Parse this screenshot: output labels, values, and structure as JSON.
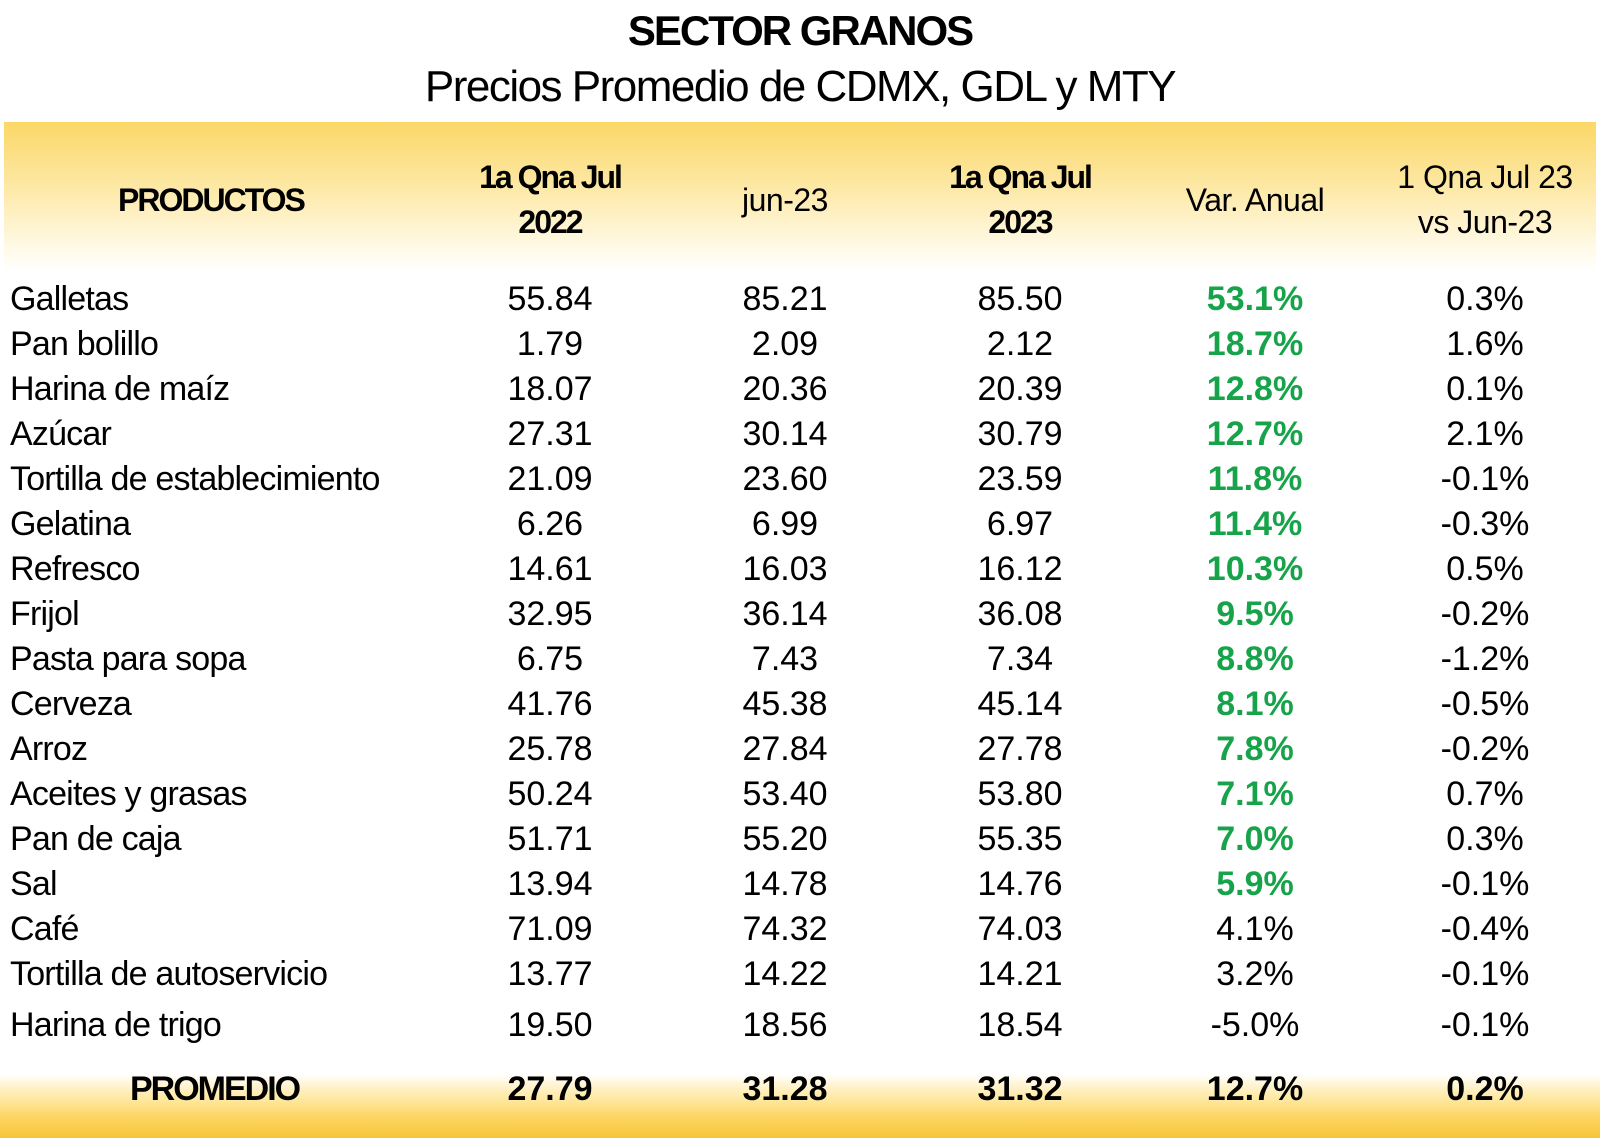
{
  "title": "SECTOR GRANOS",
  "subtitle": "Precios Promedio de CDMX, GDL y MTY",
  "columns": [
    "PRODUCTOS",
    "1a Qna Jul\n2022",
    "jun-23",
    "1a Qna Jul\n2023",
    "Var. Anual",
    "1 Qna Jul 23\nvs Jun-23"
  ],
  "highlight_color": "#16a34a",
  "rows": [
    {
      "producto": "Galletas",
      "jul22": "55.84",
      "jun23": "85.21",
      "jul23": "85.50",
      "var_anual": "53.1%",
      "var_mensual": "0.3%",
      "highlight": true
    },
    {
      "producto": "Pan bolillo",
      "jul22": "1.79",
      "jun23": "2.09",
      "jul23": "2.12",
      "var_anual": "18.7%",
      "var_mensual": "1.6%",
      "highlight": true
    },
    {
      "producto": "Harina de maíz",
      "jul22": "18.07",
      "jun23": "20.36",
      "jul23": "20.39",
      "var_anual": "12.8%",
      "var_mensual": "0.1%",
      "highlight": true
    },
    {
      "producto": "Azúcar",
      "jul22": "27.31",
      "jun23": "30.14",
      "jul23": "30.79",
      "var_anual": "12.7%",
      "var_mensual": "2.1%",
      "highlight": true
    },
    {
      "producto": "Tortilla de establecimiento",
      "jul22": "21.09",
      "jun23": "23.60",
      "jul23": "23.59",
      "var_anual": "11.8%",
      "var_mensual": "-0.1%",
      "highlight": true
    },
    {
      "producto": "Gelatina",
      "jul22": "6.26",
      "jun23": "6.99",
      "jul23": "6.97",
      "var_anual": "11.4%",
      "var_mensual": "-0.3%",
      "highlight": true
    },
    {
      "producto": "Refresco",
      "jul22": "14.61",
      "jun23": "16.03",
      "jul23": "16.12",
      "var_anual": "10.3%",
      "var_mensual": "0.5%",
      "highlight": true
    },
    {
      "producto": "Frijol",
      "jul22": "32.95",
      "jun23": "36.14",
      "jul23": "36.08",
      "var_anual": "9.5%",
      "var_mensual": "-0.2%",
      "highlight": true
    },
    {
      "producto": "Pasta para sopa",
      "jul22": "6.75",
      "jun23": "7.43",
      "jul23": "7.34",
      "var_anual": "8.8%",
      "var_mensual": "-1.2%",
      "highlight": true
    },
    {
      "producto": "Cerveza",
      "jul22": "41.76",
      "jun23": "45.38",
      "jul23": "45.14",
      "var_anual": "8.1%",
      "var_mensual": "-0.5%",
      "highlight": true
    },
    {
      "producto": "Arroz",
      "jul22": "25.78",
      "jun23": "27.84",
      "jul23": "27.78",
      "var_anual": "7.8%",
      "var_mensual": "-0.2%",
      "highlight": true
    },
    {
      "producto": "Aceites y grasas",
      "jul22": "50.24",
      "jun23": "53.40",
      "jul23": "53.80",
      "var_anual": "7.1%",
      "var_mensual": "0.7%",
      "highlight": true
    },
    {
      "producto": "Pan de caja",
      "jul22": "51.71",
      "jun23": "55.20",
      "jul23": "55.35",
      "var_anual": "7.0%",
      "var_mensual": "0.3%",
      "highlight": true
    },
    {
      "producto": "Sal",
      "jul22": "13.94",
      "jun23": "14.78",
      "jul23": "14.76",
      "var_anual": "5.9%",
      "var_mensual": "-0.1%",
      "highlight": true
    },
    {
      "producto": "Café",
      "jul22": "71.09",
      "jun23": "74.32",
      "jul23": "74.03",
      "var_anual": "4.1%",
      "var_mensual": "-0.4%",
      "highlight": false
    },
    {
      "producto": "Tortilla de autoservicio",
      "jul22": "13.77",
      "jun23": "14.22",
      "jul23": "14.21",
      "var_anual": "3.2%",
      "var_mensual": "-0.1%",
      "highlight": false
    },
    {
      "producto": "Harina de trigo",
      "jul22": "19.50",
      "jun23": "18.56",
      "jul23": "18.54",
      "var_anual": "-5.0%",
      "var_mensual": "-0.1%",
      "highlight": false
    }
  ],
  "total": {
    "producto": "PROMEDIO",
    "jul22": "27.79",
    "jun23": "31.28",
    "jul23": "31.32",
    "var_anual": "12.7%",
    "var_mensual": "0.2%"
  }
}
